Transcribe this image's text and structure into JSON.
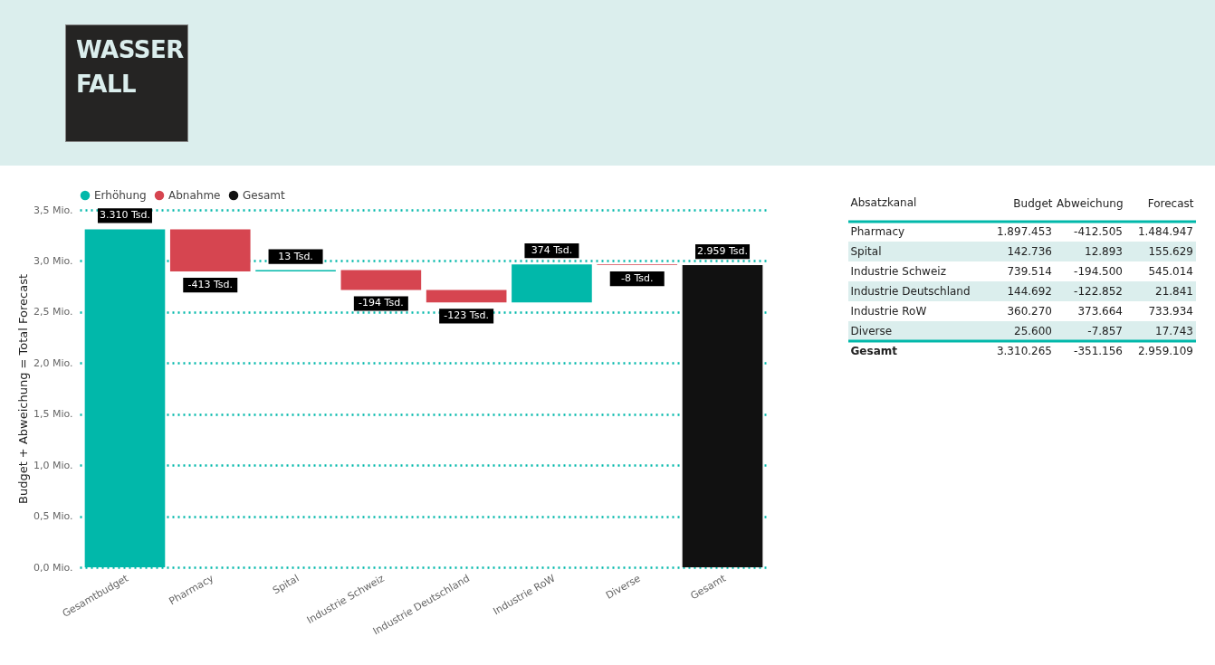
{
  "chart_data": [
    {
      "type": "bar",
      "title": "WASSER FALL",
      "ylabel": "Budget + Abweichung = Total Forecast",
      "categories": [
        "Gesamtbudget",
        "Pharmacy",
        "Spital",
        "Industrie Schweiz",
        "Industrie Deutschland",
        "Industrie RoW",
        "Diverse",
        "Gesamt"
      ],
      "series": [
        {
          "name": "Erhöhung",
          "color": "#01b8aa",
          "base": [
            0,
            null,
            2.897,
            null,
            null,
            2.593,
            null,
            null
          ],
          "values": [
            3.31,
            null,
            0.013,
            null,
            null,
            0.374,
            null,
            null
          ]
        },
        {
          "name": "Abnahme",
          "color": "#d64550",
          "base": [
            null,
            3.31,
            null,
            2.91,
            2.716,
            null,
            2.967,
            null
          ],
          "values": [
            null,
            -0.413,
            null,
            -0.194,
            -0.123,
            null,
            -0.008,
            null
          ]
        },
        {
          "name": "Gesamt",
          "color": "#111111",
          "base": [
            null,
            null,
            null,
            null,
            null,
            null,
            null,
            0
          ],
          "values": [
            null,
            null,
            null,
            null,
            null,
            null,
            null,
            2.959
          ]
        }
      ],
      "annotations": [
        {
          "text": "3.310 Tsd.",
          "x": "Gesamtbudget",
          "y": 3.31
        },
        {
          "text": "-413 Tsd.",
          "x": "Pharmacy",
          "y": 2.897
        },
        {
          "text": "13 Tsd.",
          "x": "Spital",
          "y": 2.91
        },
        {
          "text": "-194 Tsd.",
          "x": "Industrie Schweiz",
          "y": 2.716
        },
        {
          "text": "-123 Tsd.",
          "x": "Industrie Deutschland",
          "y": 2.593
        },
        {
          "text": "374 Tsd.",
          "x": "Industrie RoW",
          "y": 2.967
        },
        {
          "text": "-8 Tsd.",
          "x": "Diverse",
          "y": 2.959
        },
        {
          "text": "2.959 Tsd.",
          "x": "Gesamt",
          "y": 2.959
        }
      ],
      "ylim": [
        0,
        3.5
      ],
      "yticks": [
        {
          "value": 0,
          "label": "0,0 Mio."
        },
        {
          "value": 0.5,
          "label": "0,5 Mio."
        },
        {
          "value": 1,
          "label": "1,0 Mio."
        },
        {
          "value": 1.5,
          "label": "1,5 Mio."
        },
        {
          "value": 2,
          "label": "2,0 Mio."
        },
        {
          "value": 2.5,
          "label": "2,5 Mio."
        },
        {
          "value": 3,
          "label": "3,0 Mio."
        },
        {
          "value": 3.5,
          "label": "3,5 Mio."
        }
      ],
      "grid": "y",
      "legend": "top"
    },
    {
      "type": "other",
      "ylabel": "Absatzkanal",
      "categories": [
        "Pharmacy",
        "Spital",
        "Industrie Schweiz",
        "Industrie Deutschland",
        "Industrie RoW",
        "Diverse",
        "Gesamt"
      ],
      "series": [
        {
          "name": "Budget",
          "values": [
            1897453,
            142736,
            739514,
            144692,
            360270,
            25600,
            3310265
          ],
          "value_labels": [
            "1.897.453",
            "142.736",
            "739.514",
            "144.692",
            "360.270",
            "25.600",
            "3.310.265"
          ]
        },
        {
          "name": "Abweichung",
          "values": [
            -412505,
            12893,
            -194500,
            -122852,
            373664,
            -7857,
            -351156
          ],
          "value_labels": [
            "-412.505",
            "12.893",
            "-194.500",
            "-122.852",
            "373.664",
            "-7.857",
            "-351.156"
          ]
        },
        {
          "name": "Forecast",
          "values": [
            1484947,
            155629,
            545014,
            21841,
            733934,
            17743,
            2959109
          ],
          "value_labels": [
            "1.484.947",
            "155.629",
            "545.014",
            "21.841",
            "733.934",
            "17.743",
            "2.959.109"
          ]
        }
      ]
    }
  ]
}
